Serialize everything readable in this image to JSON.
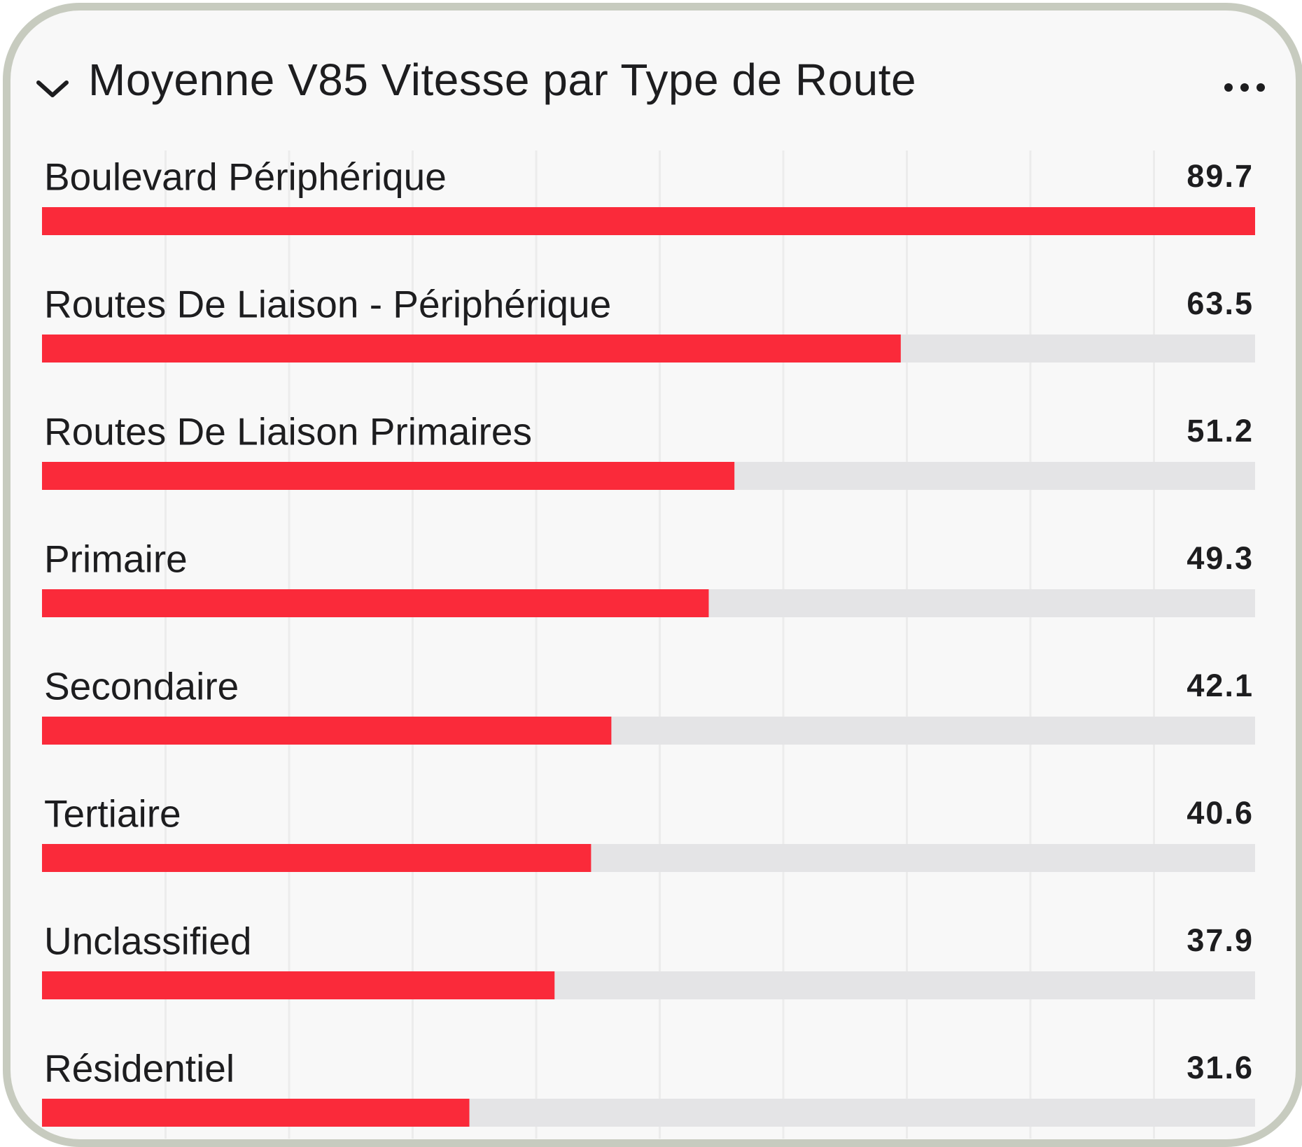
{
  "header": {
    "title": "Moyenne V85 Vitesse par Type de Route",
    "collapse_icon": "chevron-down-icon",
    "menu_icon": "more-horizontal-icon"
  },
  "colors": {
    "bar": "#fa2a3a",
    "track": "#e4e4e6",
    "grid": "#ececec",
    "label": "#1d1d1f"
  },
  "chart_data": {
    "type": "bar",
    "orientation": "horizontal",
    "categories": [
      "Boulevard Périphérique",
      "Routes De Liaison - Périphérique",
      "Routes De Liaison Primaires",
      "Primaire",
      "Secondaire",
      "Tertiaire",
      "Unclassified",
      "Résidentiel"
    ],
    "values": [
      89.7,
      63.5,
      51.2,
      49.3,
      42.1,
      40.6,
      37.9,
      31.6
    ],
    "value_labels": [
      "89.7",
      "63.5",
      "51.2",
      "49.3",
      "42.1",
      "40.6",
      "37.9",
      "31.6"
    ],
    "xlim": [
      0,
      89.7
    ],
    "grid": true,
    "legend": "none"
  }
}
